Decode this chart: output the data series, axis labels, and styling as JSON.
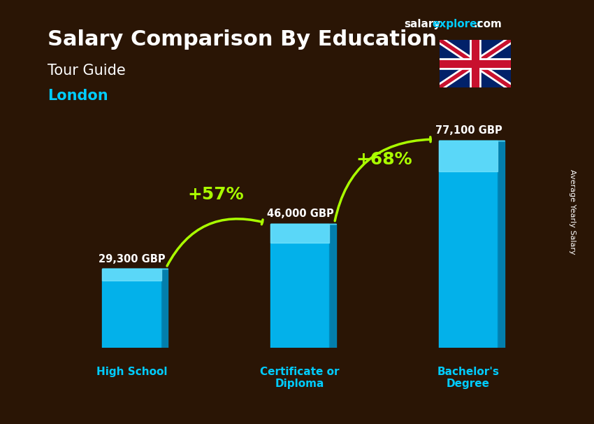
{
  "title": "Salary Comparison By Education",
  "subtitle": "Tour Guide",
  "location": "London",
  "categories": [
    "High School",
    "Certificate or\nDiploma",
    "Bachelor's\nDegree"
  ],
  "values": [
    29300,
    46000,
    77100
  ],
  "labels": [
    "29,300 GBP",
    "46,000 GBP",
    "77,100 GBP"
  ],
  "pct_changes": [
    "+57%",
    "+68%"
  ],
  "bar_color_top": "#00d4ff",
  "bar_color_mid": "#00aadd",
  "bar_color_bottom": "#0077bb",
  "bar_color_face": "#00bfff",
  "bg_color": "#1a0a00",
  "title_color": "#ffffff",
  "subtitle_color": "#ffffff",
  "location_color": "#00ccff",
  "label_color": "#ffffff",
  "category_color": "#00ccff",
  "arrow_color": "#aaff00",
  "pct_color": "#aaff00",
  "side_label": "Average Yearly Salary",
  "watermark": "salaryexplorer.com",
  "ylim": [
    0,
    90000
  ],
  "bar_width": 0.35
}
